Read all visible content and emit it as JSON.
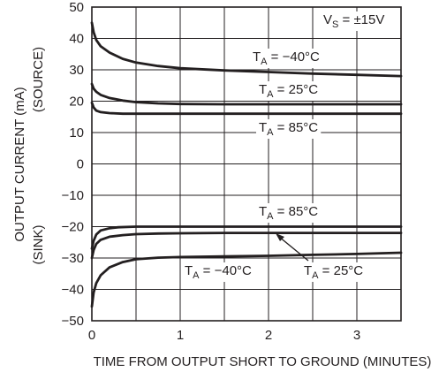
{
  "chart_data": {
    "type": "line",
    "title": "",
    "xlabel": "TIME FROM OUTPUT SHORT TO GROUND (MINUTES)",
    "ylabel": "OUTPUT CURRENT (mA)",
    "ylabel_top": "(SOURCE)",
    "ylabel_bottom": "(SINK)",
    "xlim": [
      0,
      3.5
    ],
    "ylim": [
      -50,
      50
    ],
    "x_ticks": [
      0,
      1,
      2,
      3
    ],
    "y_ticks": [
      50,
      40,
      30,
      20,
      10,
      0,
      -10,
      -20,
      -30,
      -40,
      -50
    ],
    "y_tick_labels": [
      "50",
      "40",
      "30",
      "20",
      "10",
      "0",
      "−10",
      "−20",
      "−30",
      "−40",
      "−50"
    ],
    "grid": true,
    "color": "#231f20",
    "annotation": {
      "main": "V",
      "sub": "S",
      "rest": " = ±15V"
    },
    "series": [
      {
        "label_main": "T",
        "label_sub": "A",
        "label_rest": " = −40°C",
        "x": [
          0,
          0.02,
          0.05,
          0.1,
          0.2,
          0.35,
          0.5,
          0.75,
          1.0,
          1.5,
          2.0,
          2.5,
          3.0,
          3.5
        ],
        "y": [
          45,
          42,
          39.5,
          37.5,
          35.5,
          33.5,
          32.3,
          31.2,
          30.5,
          29.8,
          29.3,
          28.8,
          28.4,
          28.0
        ]
      },
      {
        "label_main": "T",
        "label_sub": "A",
        "label_rest": " = 25°C",
        "x": [
          0,
          0.02,
          0.05,
          0.1,
          0.2,
          0.35,
          0.5,
          0.75,
          1.0,
          1.5,
          2.0,
          2.5,
          3.0,
          3.5
        ],
        "y": [
          25.5,
          24,
          23,
          22,
          21,
          20.2,
          19.7,
          19.3,
          19.1,
          19.0,
          19.0,
          19.0,
          19.0,
          19.0
        ]
      },
      {
        "label_main": "T",
        "label_sub": "A",
        "label_rest": " = 85°C",
        "x": [
          0,
          0.02,
          0.05,
          0.1,
          0.2,
          0.35,
          0.5,
          1.0,
          1.5,
          2.0,
          2.5,
          3.0,
          3.5
        ],
        "y": [
          19.5,
          18,
          17,
          16.5,
          16.2,
          16.0,
          16.0,
          16.0,
          16.0,
          16.0,
          16.0,
          16.0,
          16.0
        ]
      },
      {
        "label_main": "T",
        "label_sub": "A",
        "label_rest": " = 85°C",
        "x": [
          0,
          0.02,
          0.05,
          0.1,
          0.2,
          0.3,
          0.5,
          1.0,
          1.5,
          2.0,
          2.5,
          3.0,
          3.5
        ],
        "y": [
          -27,
          -24.5,
          -22.5,
          -21.2,
          -20.5,
          -20.2,
          -20.0,
          -20.0,
          -20.0,
          -20.0,
          -20.0,
          -20.0,
          -20.0
        ]
      },
      {
        "label_main": "T",
        "label_sub": "A",
        "label_rest": " = 25°C",
        "x": [
          0,
          0.02,
          0.05,
          0.1,
          0.2,
          0.35,
          0.5,
          0.75,
          1.0,
          1.5,
          2.0,
          2.5,
          3.0,
          3.5
        ],
        "y": [
          -30,
          -27.5,
          -25.5,
          -24.2,
          -23.2,
          -22.7,
          -22.4,
          -22.2,
          -22.1,
          -22.0,
          -22.0,
          -22.0,
          -22.0,
          -22.0
        ]
      },
      {
        "label_main": "T",
        "label_sub": "A",
        "label_rest": " = −40°C",
        "x": [
          0,
          0.02,
          0.05,
          0.1,
          0.2,
          0.35,
          0.5,
          0.75,
          1.0,
          1.5,
          2.0,
          2.5,
          3.0,
          3.5
        ],
        "y": [
          -45.5,
          -41,
          -38,
          -35.5,
          -33,
          -31.3,
          -30.4,
          -29.9,
          -29.7,
          -29.5,
          -29.3,
          -29.0,
          -28.7,
          -28.3
        ]
      }
    ]
  }
}
